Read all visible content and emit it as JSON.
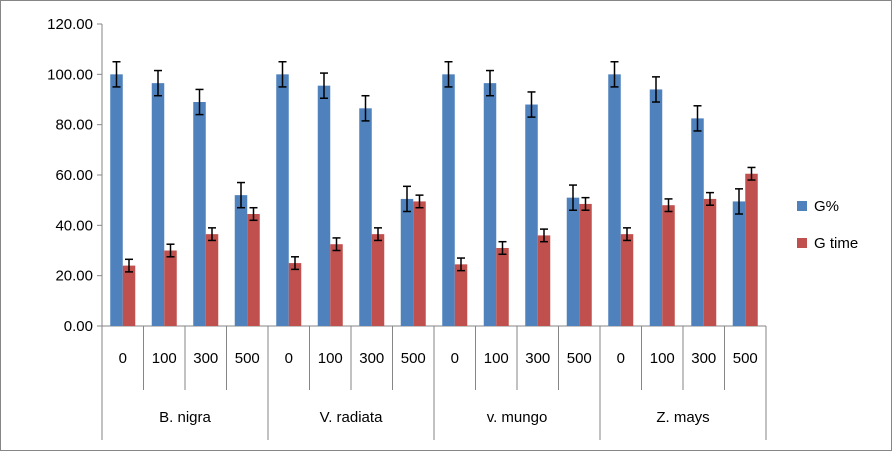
{
  "chart_data": {
    "type": "bar",
    "groups": [
      {
        "name": "B. nigra",
        "categories": [
          "0",
          "100",
          "300",
          "500"
        ]
      },
      {
        "name": "V. radiata",
        "categories": [
          "0",
          "100",
          "300",
          "500"
        ]
      },
      {
        "name": "v. mungo",
        "categories": [
          "0",
          "100",
          "300",
          "500"
        ]
      },
      {
        "name": "Z. mays",
        "categories": [
          "0",
          "100",
          "300",
          "500"
        ]
      }
    ],
    "series": [
      {
        "name": "G%",
        "color": "#4F81BD",
        "values": [
          100,
          96.5,
          89,
          52,
          100,
          95.5,
          86.5,
          50.5,
          100,
          96.5,
          88,
          51,
          100,
          94,
          82.5,
          49.5
        ],
        "errors": [
          5,
          5,
          5,
          5,
          5,
          5,
          5,
          5,
          5,
          5,
          5,
          5,
          5,
          5,
          5,
          5
        ]
      },
      {
        "name": "G time",
        "color": "#C0504D",
        "values": [
          24,
          30,
          36.5,
          44.5,
          25,
          32.5,
          36.5,
          49.5,
          24.5,
          31,
          36,
          48.5,
          36.5,
          48,
          50.5,
          60.5
        ],
        "errors": [
          2.5,
          2.5,
          2.5,
          2.5,
          2.5,
          2.5,
          2.5,
          2.5,
          2.5,
          2.5,
          2.5,
          2.5,
          2.5,
          2.5,
          2.5,
          2.5
        ]
      }
    ],
    "y_ticks": [
      "0.00",
      "20.00",
      "40.00",
      "60.00",
      "80.00",
      "100.00",
      "120.00"
    ],
    "ylim": [
      0,
      120
    ],
    "title": "",
    "xlabel": "",
    "ylabel": "",
    "grid": false,
    "legend": "right"
  }
}
